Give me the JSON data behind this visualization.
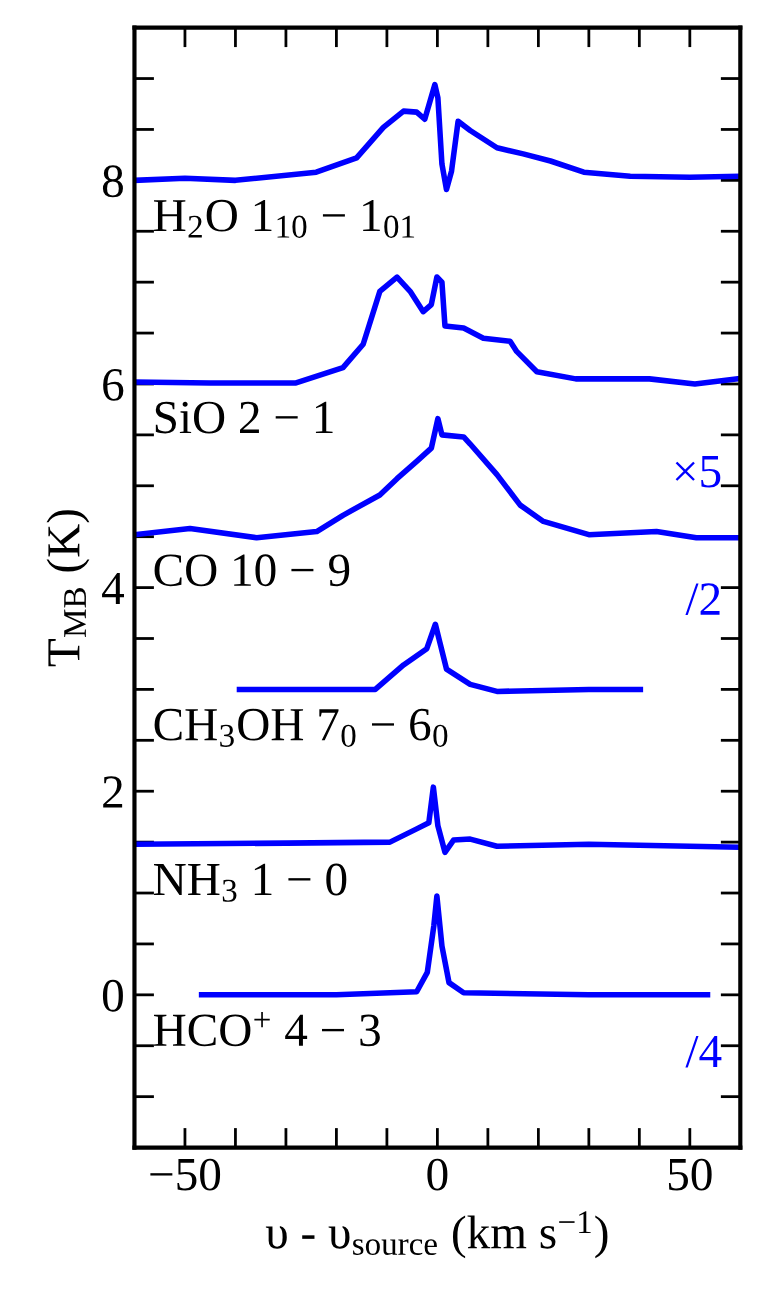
{
  "chart_data": {
    "type": "line",
    "xlabel": "υ - υ$_{source}$ (km s$^{−1}$)",
    "ylabel": "T$_{MB}$ (K)",
    "xlim": [
      -60,
      60
    ],
    "ylim": [
      -1.5,
      9.5
    ],
    "xticks": [
      {
        "value": -60,
        "label": null
      },
      -50,
      {
        "value": -40,
        "label": null
      },
      {
        "value": -30,
        "label": null
      },
      {
        "value": -20,
        "label": null
      },
      {
        "value": -10,
        "label": null
      },
      0,
      {
        "value": 10,
        "label": null
      },
      {
        "value": 20,
        "label": null
      },
      {
        "value": 30,
        "label": null
      },
      {
        "value": 40,
        "label": null
      },
      50
    ],
    "yticks": [
      {
        "value": -1,
        "label": null
      },
      {
        "value": -0.5,
        "label": null
      },
      0,
      {
        "value": 0.5,
        "label": null
      },
      {
        "value": 1,
        "label": null
      },
      {
        "value": 1.5,
        "label": null
      },
      2,
      {
        "value": 2.5,
        "label": null
      },
      {
        "value": 3,
        "label": null
      },
      {
        "value": 3.5,
        "label": null
      },
      4,
      {
        "value": 4.5,
        "label": null
      },
      {
        "value": 5,
        "label": null
      },
      {
        "value": 5.5,
        "label": null
      },
      6,
      {
        "value": 6.5,
        "label": null
      },
      {
        "value": 7,
        "label": null
      },
      {
        "value": 7.5,
        "label": null
      },
      8,
      {
        "value": 8.5,
        "label": null
      },
      {
        "value": 9,
        "label": null
      }
    ],
    "grid": false,
    "legend": false,
    "marker": "none",
    "line_style": "solid",
    "series": [
      {
        "name": "H$_{2}$O 1$_{10}$ − 1$_{01}$",
        "color": "#0000ff",
        "x": [
          -60,
          -50,
          -40,
          -24,
          -16,
          -10.7,
          -6.7,
          -4.1,
          -2.5,
          -0.5,
          0.1,
          0.9,
          1.8,
          2.8,
          4.1,
          6.5,
          11.8,
          17,
          22.4,
          29,
          38.2,
          50,
          59.4
        ],
        "values": [
          8.0,
          8.02,
          8.0,
          8.08,
          8.22,
          8.52,
          8.68,
          8.67,
          8.6,
          8.94,
          8.81,
          8.16,
          7.91,
          8.09,
          8.58,
          8.49,
          8.32,
          8.26,
          8.19,
          8.08,
          8.04,
          8.03,
          8.04
        ]
      },
      {
        "name": "SiO 2 − 1",
        "color": "#0000ff",
        "x": [
          -60,
          -45,
          -28,
          -18.7,
          -14.7,
          -11.4,
          -8,
          -5.4,
          -2.8,
          -1.2,
          -0.1,
          0.9,
          1.5,
          5.2,
          9.1,
          14.4,
          15.7,
          19.7,
          27.4,
          42,
          51,
          59.4
        ],
        "values": [
          6.02,
          6.01,
          6.01,
          6.16,
          6.39,
          6.91,
          7.05,
          6.91,
          6.71,
          6.78,
          7.05,
          7.0,
          6.57,
          6.55,
          6.45,
          6.42,
          6.32,
          6.12,
          6.05,
          6.05,
          6.0,
          6.05
        ]
      },
      {
        "name": "CO 10 − 9",
        "color": "#0000ff",
        "x": [
          -60,
          -49,
          -35.8,
          -23.9,
          -18.7,
          -11.4,
          -8,
          -4.1,
          -1.2,
          0.1,
          0.9,
          5.2,
          6.5,
          11.8,
          16.4,
          21,
          30,
          43.4,
          51.3,
          59.4
        ],
        "values": [
          4.52,
          4.58,
          4.49,
          4.55,
          4.71,
          4.91,
          5.07,
          5.24,
          5.37,
          5.66,
          5.5,
          5.48,
          5.41,
          5.11,
          4.81,
          4.65,
          4.52,
          4.55,
          4.49,
          4.49
        ]
      },
      {
        "name": "CH$_{3}$OH 7$_{0}$ − 6$_{0}$",
        "color": "#0000ff",
        "x": [
          -39.2,
          -25,
          -12.3,
          -6.7,
          -2.1,
          -0.4,
          0.5,
          1.8,
          6.5,
          11.8,
          30,
          40.2
        ],
        "values": [
          3.0,
          3.0,
          3.0,
          3.24,
          3.4,
          3.64,
          3.46,
          3.2,
          3.05,
          2.98,
          3.0,
          3.0
        ]
      },
      {
        "name": "NH$_{3}$ 1 − 0",
        "color": "#0000ff",
        "x": [
          -60,
          -30,
          -9.4,
          -4.1,
          -1.7,
          -0.8,
          0.1,
          1.5,
          3.2,
          6.5,
          11.8,
          30,
          59.4
        ],
        "values": [
          1.48,
          1.49,
          1.5,
          1.63,
          1.69,
          2.04,
          1.66,
          1.4,
          1.52,
          1.53,
          1.46,
          1.48,
          1.45
        ]
      },
      {
        "name": "HCO$^{+}$ 4 − 3",
        "color": "#0000ff",
        "x": [
          -46.7,
          -20,
          -4.1,
          -2,
          -0.7,
          -0.1,
          0.9,
          2.3,
          5.2,
          30,
          53.5
        ],
        "values": [
          0.0,
          0.0,
          0.03,
          0.22,
          0.68,
          0.97,
          0.48,
          0.12,
          0.02,
          0.0,
          0.0
        ]
      }
    ],
    "annotations": [
      "×5",
      "/2",
      "/4"
    ]
  }
}
